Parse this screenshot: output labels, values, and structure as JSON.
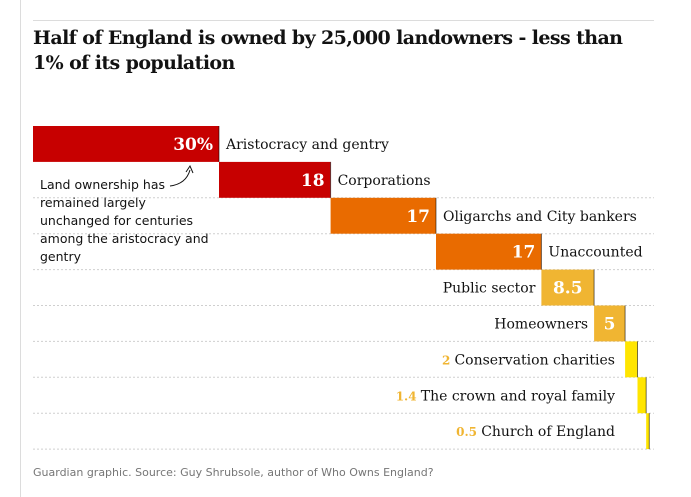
{
  "title": "Half of England is owned by 25,000 landowners - less than 1% of its population",
  "annotation": "Land ownership has remained largely unchanged for centuries among the aristocracy and gentry",
  "source": "Guardian graphic. Source: Guy Shrubsole, author of Who Owns England?",
  "chart_data": {
    "type": "bar",
    "subtype": "waterfall",
    "unit": "%",
    "categories": [
      "Aristocracy and gentry",
      "Corporations",
      "Oligarchs and City bankers",
      "Unaccounted",
      "Public sector",
      "Homeowners",
      "Conservation charities",
      "The crown and royal family",
      "Church of England"
    ],
    "values": [
      30,
      18,
      17,
      17,
      8.5,
      5,
      2,
      1.4,
      0.5
    ],
    "value_labels": [
      "30%",
      "18",
      "17",
      "17",
      "8.5",
      "5",
      "2",
      "1.4",
      "0.5"
    ],
    "colors": [
      "#c70000",
      "#c70000",
      "#e96b00",
      "#e96b00",
      "#f0b532",
      "#f0b532",
      "#ffe500",
      "#ffe500",
      "#ffe500"
    ],
    "value_text_color": "#f0b532",
    "xlim": [
      0,
      100
    ],
    "grid": "dotted row separators"
  }
}
